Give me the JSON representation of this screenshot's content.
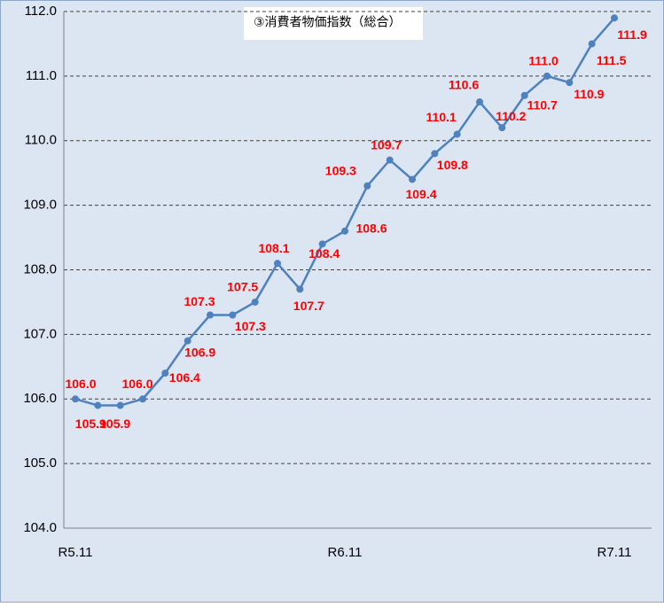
{
  "chart_data": {
    "type": "line",
    "title": "③消費者物価指数（総合）",
    "categories": [
      "R5.11",
      null,
      null,
      null,
      null,
      null,
      null,
      null,
      null,
      null,
      null,
      null,
      "R6.11",
      null,
      null,
      null,
      null,
      null,
      null,
      null,
      null,
      null,
      null,
      null,
      "R7.11"
    ],
    "values": [
      106.0,
      105.9,
      105.9,
      106.0,
      106.4,
      106.9,
      107.3,
      107.3,
      107.5,
      108.1,
      107.7,
      108.4,
      108.6,
      109.3,
      109.7,
      109.4,
      109.8,
      110.1,
      110.6,
      110.2,
      110.7,
      111.0,
      110.9,
      111.5,
      111.9
    ],
    "value_labels": [
      "106.0",
      "105.9",
      "105.9",
      "106.0",
      "106.4",
      "106.9",
      "107.3",
      "107.3",
      "107.5",
      "108.1",
      "107.7",
      "108.4",
      "108.6",
      "109.3",
      "109.7",
      "109.4",
      "109.8",
      "110.1",
      "110.6",
      "110.2",
      "110.7",
      "111.0",
      "110.9",
      "111.5",
      "111.9"
    ],
    "color": "#4f81bd",
    "label_color": "#ff0000",
    "ylim": [
      104,
      112
    ],
    "yticks": [
      {
        "value": 104,
        "label": "104.0"
      },
      {
        "value": 105,
        "label": "105.0"
      },
      {
        "value": 106,
        "label": "106.0"
      },
      {
        "value": 107,
        "label": "107.0"
      },
      {
        "value": 108,
        "label": "108.0"
      },
      {
        "value": 109,
        "label": "109.0"
      },
      {
        "value": 110,
        "label": "110.0"
      },
      {
        "value": 111,
        "label": "111.0"
      },
      {
        "value": 112,
        "label": "112.0"
      }
    ],
    "grid": true
  }
}
